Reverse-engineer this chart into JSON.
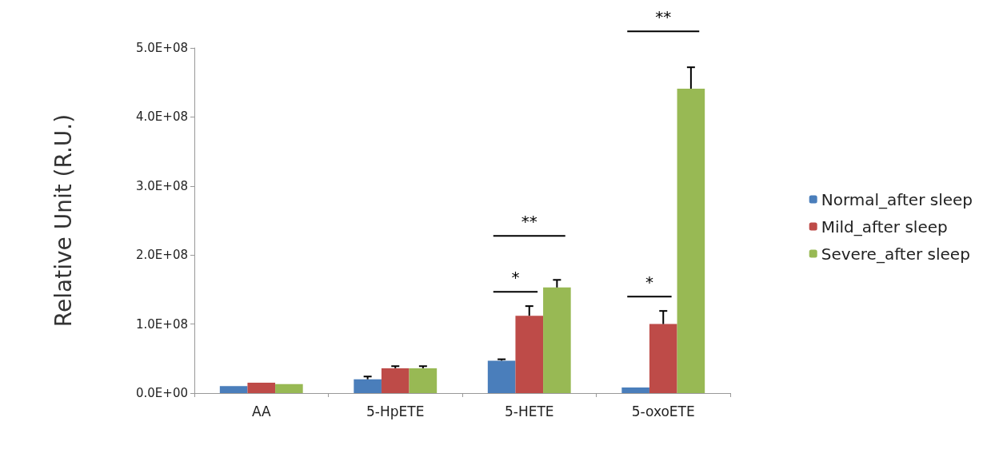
{
  "chart_data": {
    "type": "bar",
    "ylabel": "Relative Unit (R.U.)",
    "categories": [
      "AA",
      "5-HpETE",
      "5-HETE",
      "5-oxoETE"
    ],
    "series": [
      {
        "name": "Normal_after sleep",
        "color": "#4a7ebb",
        "values": [
          10000000,
          20000000,
          47000000,
          8000000
        ],
        "errors": [
          null,
          4000000,
          2000000,
          null
        ]
      },
      {
        "name": "Mild_after sleep",
        "color": "#be4b48",
        "values": [
          15000000,
          36000000,
          112000000,
          100000000
        ],
        "errors": [
          null,
          3000000,
          14000000,
          19000000
        ]
      },
      {
        "name": "Severe_after sleep",
        "color": "#98b954",
        "values": [
          13000000,
          36000000,
          153000000,
          441000000
        ],
        "errors": [
          null,
          3000000,
          11000000,
          31000000
        ]
      }
    ],
    "ylim": [
      0,
      500000000
    ],
    "yticks": [
      {
        "value": 0,
        "label": "0.0E+00"
      },
      {
        "value": 100000000,
        "label": "1.0E+08"
      },
      {
        "value": 200000000,
        "label": "2.0E+08"
      },
      {
        "value": 300000000,
        "label": "3.0E+08"
      },
      {
        "value": 400000000,
        "label": "4.0E+08"
      },
      {
        "value": 500000000,
        "label": "5.0E+08"
      }
    ],
    "annotations": [
      "*",
      "**",
      "*",
      "**"
    ],
    "grid": false,
    "legend": "right"
  }
}
